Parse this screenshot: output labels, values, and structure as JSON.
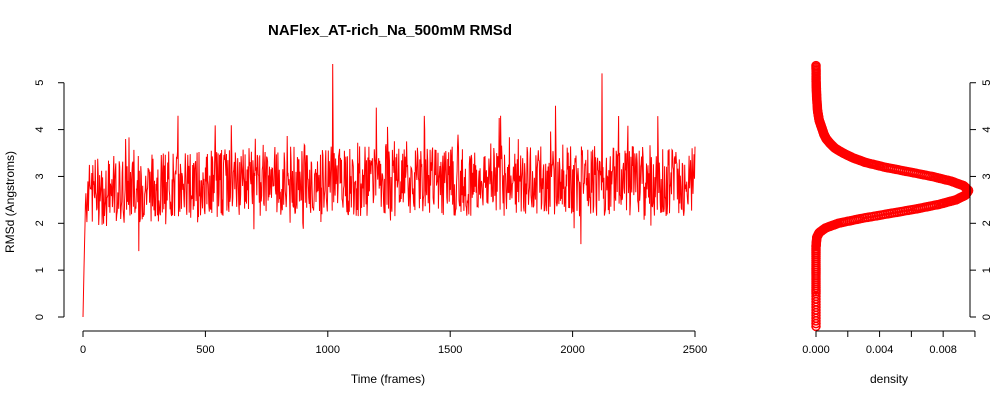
{
  "chart_data": [
    {
      "type": "line",
      "title": "NAFlex_AT-rich_Na_500mM RMSd",
      "xlabel": "Time (frames)",
      "ylabel": "RMSd (Angstroms)",
      "xlim": [
        0,
        2500
      ],
      "ylim": [
        0,
        5.4
      ],
      "xticks": [
        "0",
        "500",
        "1000",
        "1500",
        "2000",
        "2500"
      ],
      "yticks": [
        "0",
        "1",
        "2",
        "3",
        "4",
        "5"
      ],
      "line_color": "#ff0000",
      "series": [
        {
          "values_note": "x = frame index 0..2500",
          "x": [
            0,
            5,
            10,
            20,
            30,
            40,
            60,
            80,
            100,
            150,
            200,
            250,
            300,
            350,
            400,
            450,
            500,
            550,
            600,
            650,
            700,
            750,
            800,
            850,
            900,
            950,
            1000,
            1020,
            1050,
            1100,
            1150,
            1200,
            1250,
            1300,
            1350,
            1400,
            1450,
            1500,
            1550,
            1600,
            1650,
            1700,
            1750,
            1800,
            1850,
            1900,
            1950,
            2000,
            2050,
            2100,
            2120,
            2150,
            2200,
            2250,
            2300,
            2350,
            2400,
            2450,
            2500
          ],
          "y": [
            0.0,
            1.3,
            2.4,
            2.8,
            3.2,
            2.9,
            3.9,
            3.5,
            2.8,
            2.6,
            3.3,
            2.7,
            3.4,
            2.8,
            3.3,
            2.6,
            3.0,
            3.4,
            3.2,
            2.7,
            3.7,
            2.9,
            3.4,
            3.0,
            3.8,
            3.6,
            2.8,
            5.4,
            3.5,
            3.2,
            3.9,
            3.1,
            3.6,
            2.8,
            3.4,
            3.0,
            3.7,
            2.9,
            3.3,
            2.7,
            3.2,
            2.6,
            3.0,
            3.5,
            2.7,
            3.3,
            2.8,
            3.6,
            2.9,
            3.4,
            5.2,
            3.0,
            3.5,
            2.7,
            3.2,
            3.4,
            2.8,
            3.2,
            2.6
          ]
        }
      ]
    },
    {
      "type": "line",
      "xlabel": "density",
      "xlim": [
        0,
        0.0095
      ],
      "ylim": [
        0,
        5.4
      ],
      "xticks": [
        "0.000",
        "0.004",
        "0.008"
      ],
      "yticks": [
        "0",
        "1",
        "2",
        "3",
        "4",
        "5"
      ],
      "point_color": "#ff0000",
      "series": [
        {
          "y": [
            -0.2,
            0.5,
            1.0,
            1.5,
            1.7,
            1.8,
            1.9,
            2.0,
            2.1,
            2.2,
            2.3,
            2.4,
            2.5,
            2.6,
            2.7,
            2.8,
            2.9,
            3.0,
            3.1,
            3.2,
            3.3,
            3.4,
            3.5,
            3.6,
            3.7,
            3.8,
            3.9,
            4.0,
            4.1,
            4.2,
            4.4,
            4.7,
            5.0,
            5.4
          ],
          "density": [
            0.0,
            0.0,
            0.0,
            0.0,
            5e-05,
            0.0002,
            0.0006,
            0.0014,
            0.0028,
            0.0045,
            0.0062,
            0.0077,
            0.0088,
            0.0094,
            0.0096,
            0.0093,
            0.0085,
            0.0073,
            0.0058,
            0.0043,
            0.0031,
            0.0023,
            0.0017,
            0.0012,
            0.0009,
            0.00065,
            0.0005,
            0.0004,
            0.0003,
            0.0002,
            0.0001,
            4e-05,
            1e-05,
            0.0
          ]
        }
      ]
    }
  ]
}
